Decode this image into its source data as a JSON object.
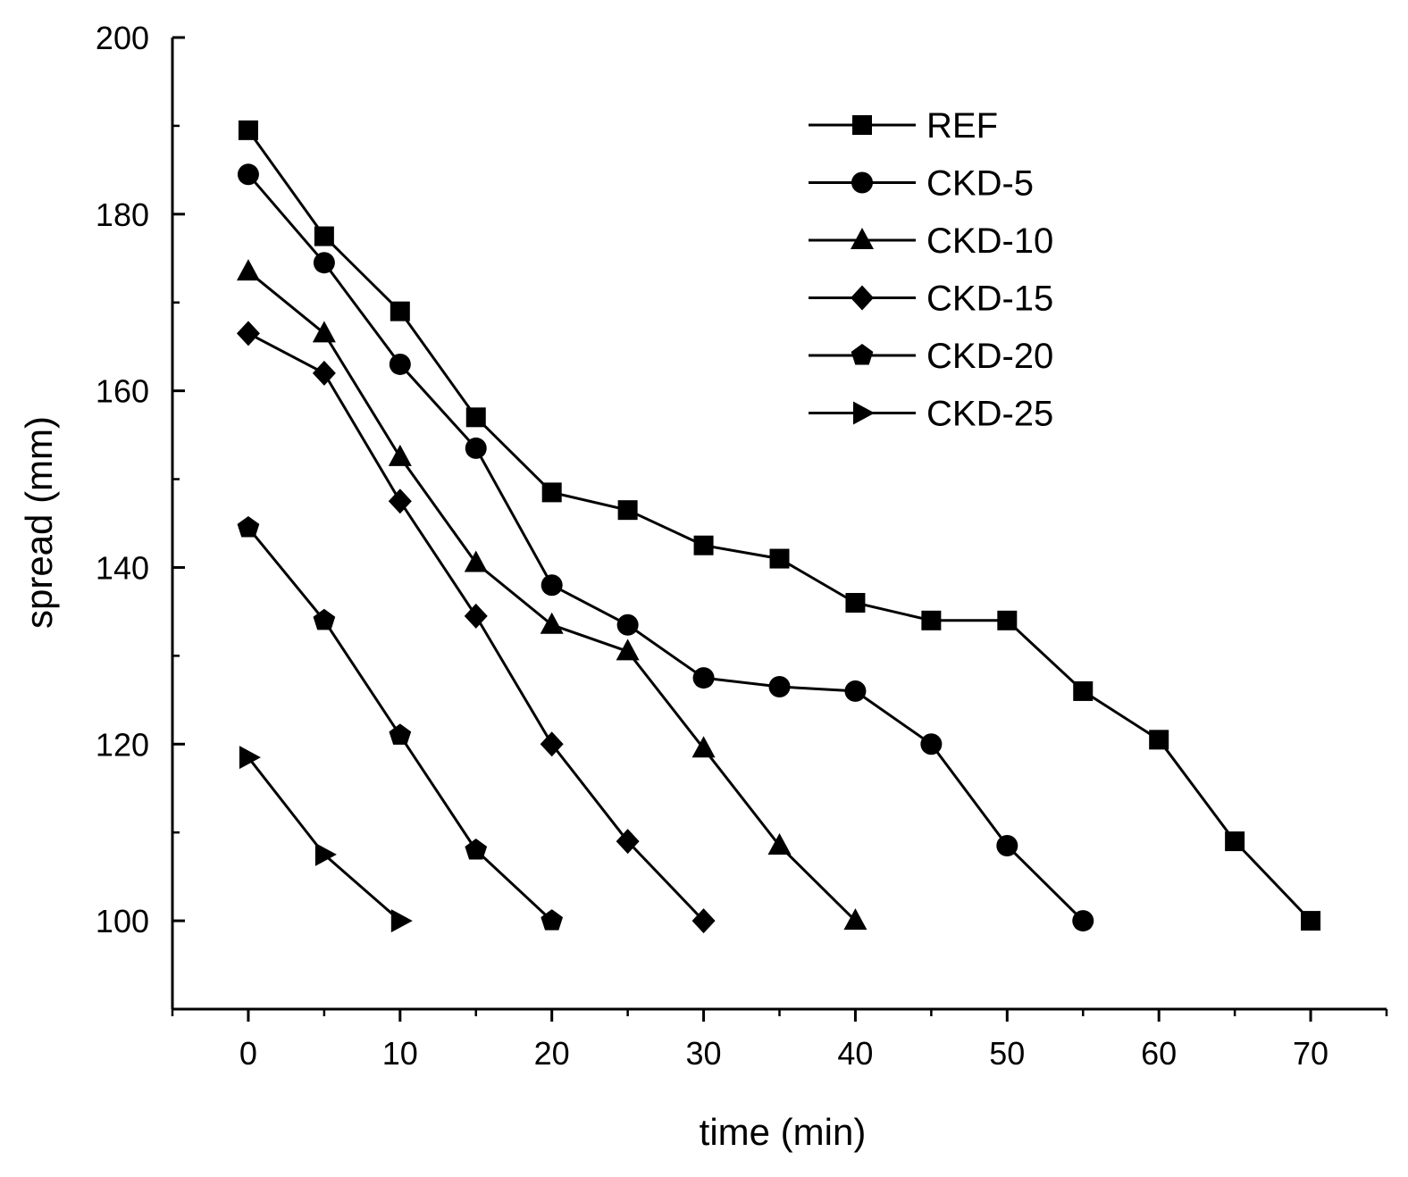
{
  "chart_data": {
    "type": "line",
    "title": "",
    "xlabel": "time (min)",
    "ylabel": "spread (mm)",
    "xlim": [
      -5,
      75
    ],
    "ylim": [
      90,
      200
    ],
    "xticks": [
      0,
      10,
      20,
      30,
      40,
      50,
      60,
      70
    ],
    "xtick_labels": [
      "0",
      "10",
      "20",
      "30",
      "40",
      "50",
      "60",
      "70"
    ],
    "yticks": [
      100,
      120,
      140,
      160,
      180,
      200
    ],
    "ytick_labels": [
      "100",
      "120",
      "140",
      "160",
      "180",
      "200"
    ],
    "grid": false,
    "legend_position": "top-right",
    "line_color": "#000000",
    "series": [
      {
        "name": "REF",
        "marker": "square",
        "x": [
          0,
          5,
          10,
          15,
          20,
          25,
          30,
          35,
          40,
          45,
          50,
          55,
          60,
          65,
          70
        ],
        "values": [
          189.5,
          177.5,
          169,
          157,
          148.5,
          146.5,
          142.5,
          141,
          136,
          134,
          134,
          126,
          120.5,
          109,
          100
        ]
      },
      {
        "name": "CKD-5",
        "marker": "circle",
        "x": [
          0,
          5,
          10,
          15,
          20,
          25,
          30,
          35,
          40,
          45,
          50,
          55
        ],
        "values": [
          184.5,
          174.5,
          163,
          153.5,
          138,
          133.5,
          127.5,
          126.5,
          126,
          120,
          108.5,
          100
        ]
      },
      {
        "name": "CKD-10",
        "marker": "triangle",
        "x": [
          0,
          5,
          10,
          15,
          20,
          25,
          30,
          35,
          40
        ],
        "values": [
          173.5,
          166.5,
          152.5,
          140.5,
          133.5,
          130.5,
          119.5,
          108.5,
          100
        ]
      },
      {
        "name": "CKD-15",
        "marker": "diamond",
        "x": [
          0,
          5,
          10,
          15,
          20,
          25,
          30
        ],
        "values": [
          166.5,
          162,
          147.5,
          134.5,
          120,
          109,
          100
        ]
      },
      {
        "name": "CKD-20",
        "marker": "pentagon",
        "x": [
          0,
          5,
          10,
          15,
          20
        ],
        "values": [
          144.5,
          134,
          121,
          108,
          100
        ]
      },
      {
        "name": "CKD-25",
        "marker": "triangle-right",
        "x": [
          0,
          5,
          10
        ],
        "values": [
          118.5,
          107.5,
          100
        ]
      }
    ]
  }
}
